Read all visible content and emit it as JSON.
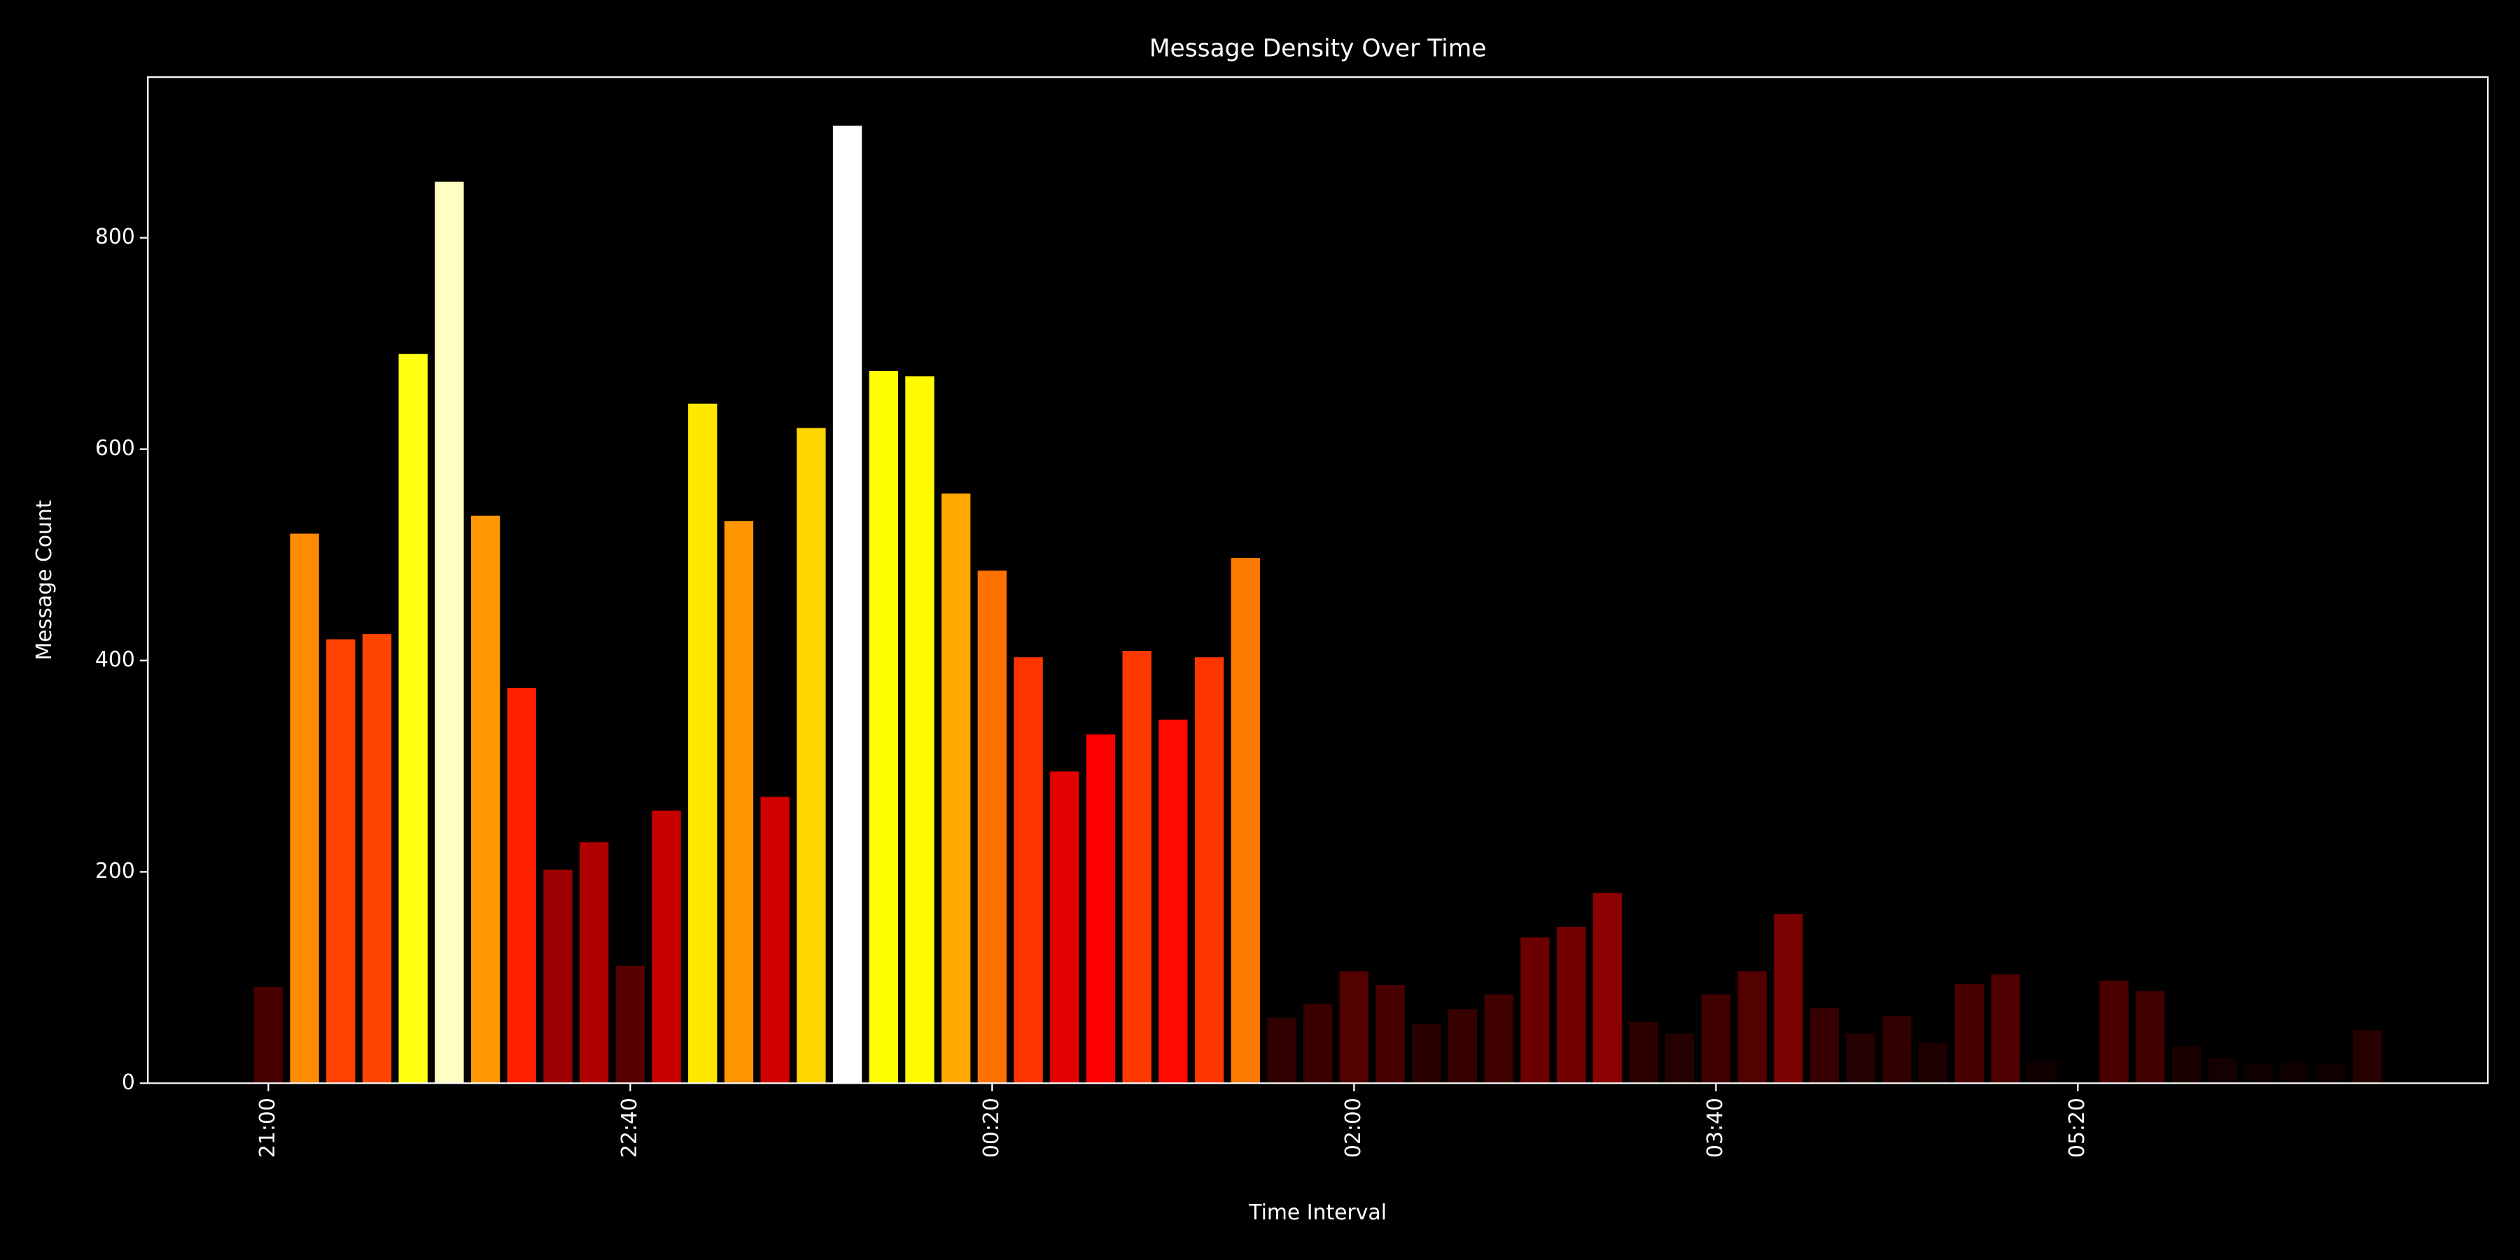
{
  "chart_data": {
    "type": "bar",
    "title": "Message Density Over Time",
    "x_label": "Time Interval",
    "y_label": "Message Count",
    "categories": [
      "21:00",
      null,
      null,
      null,
      null,
      null,
      null,
      null,
      null,
      null,
      "22:40",
      null,
      null,
      null,
      null,
      null,
      null,
      null,
      null,
      null,
      "00:20",
      null,
      null,
      null,
      null,
      null,
      null,
      null,
      null,
      null,
      "02:00",
      null,
      null,
      null,
      null,
      null,
      null,
      null,
      null,
      null,
      "03:40",
      null,
      null,
      null,
      null,
      null,
      null,
      null,
      null,
      null,
      "05:20",
      null,
      null,
      null,
      null,
      null,
      null,
      null,
      null
    ],
    "values": [
      91,
      520,
      420,
      425,
      690,
      853,
      537,
      374,
      202,
      228,
      111,
      258,
      643,
      532,
      271,
      620,
      906,
      674,
      669,
      558,
      485,
      403,
      295,
      330,
      409,
      344,
      403,
      497,
      62,
      75,
      106,
      93,
      56,
      70,
      84,
      138,
      148,
      180,
      58,
      47,
      84,
      106,
      160,
      71,
      47,
      64,
      38,
      94,
      103,
      21,
      0,
      97,
      87,
      35,
      24,
      18,
      20,
      18,
      50
    ],
    "colormap": "hot",
    "ylim": [
      0,
      952
    ],
    "yticks": [
      0,
      200,
      400,
      600,
      800
    ],
    "grid": false
  }
}
